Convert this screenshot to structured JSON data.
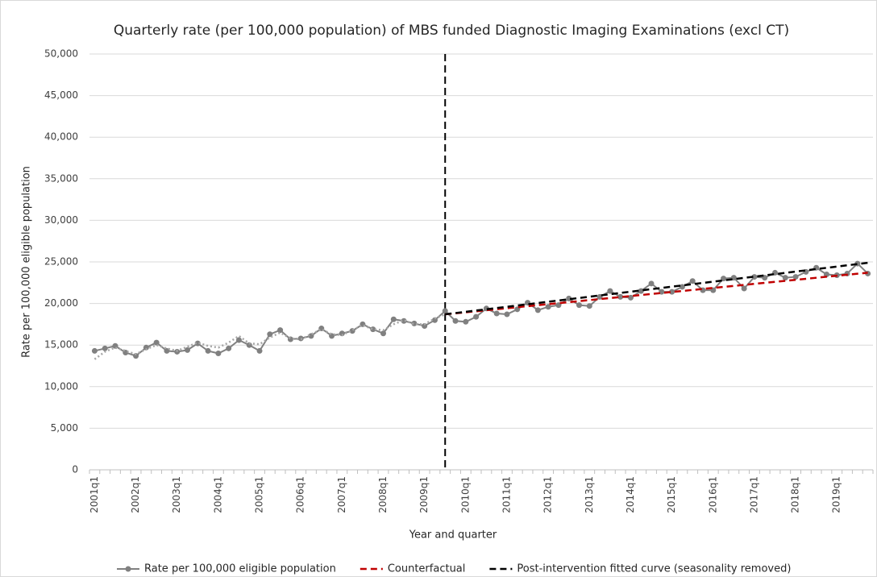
{
  "chart_data": {
    "type": "line",
    "title": "Quarterly rate (per 100,000 population) of MBS funded Diagnostic Imaging Examinations (excl CT)",
    "x_label": "Year and quarter",
    "y_label": "Rate per 100,000 eligible population",
    "categories": [
      "2001q1",
      null,
      null,
      null,
      "2002q1",
      null,
      null,
      null,
      "2003q1",
      null,
      null,
      null,
      "2004q1",
      null,
      null,
      null,
      "2005q1",
      null,
      null,
      null,
      "2006q1",
      null,
      null,
      null,
      "2007q1",
      null,
      null,
      null,
      "2008q1",
      null,
      null,
      null,
      "2009q1",
      null,
      null,
      null,
      "2010q1",
      null,
      null,
      null,
      "2011q1",
      null,
      null,
      null,
      "2012q1",
      null,
      null,
      null,
      "2013q1",
      null,
      null,
      null,
      "2014q1",
      null,
      null,
      null,
      "2015q1",
      null,
      null,
      null,
      "2016q1",
      null,
      null,
      null,
      "2017q1",
      null,
      null,
      null,
      "2018q1",
      null,
      null,
      null,
      "2019q1",
      null,
      null,
      null
    ],
    "ylim": [
      0,
      50000
    ],
    "yticks": [
      0,
      {
        "value": 5000,
        "label": "5,000"
      },
      {
        "value": 10000,
        "label": "10,000"
      },
      {
        "value": 15000,
        "label": "15,000"
      },
      {
        "value": 20000,
        "label": "20,000"
      },
      {
        "value": 25000,
        "label": "25,000"
      },
      {
        "value": 30000,
        "label": "30,000"
      },
      {
        "value": 35000,
        "label": "35,000"
      },
      {
        "value": 40000,
        "label": "40,000"
      },
      {
        "value": 45000,
        "label": "45,000"
      },
      {
        "value": 50000,
        "label": "50,000"
      }
    ],
    "grid": true,
    "legend": "bottom",
    "series": [
      {
        "name": "Rate per 100,000 eligible population",
        "color": "#808080",
        "style": "solid",
        "markers": true,
        "values": [
          14300,
          14600,
          14900,
          14100,
          13700,
          14700,
          15300,
          14300,
          14200,
          14400,
          15200,
          14300,
          14000,
          14600,
          15600,
          15000,
          14300,
          16300,
          16800,
          15700,
          15800,
          16100,
          17000,
          16100,
          16400,
          16700,
          17500,
          16900,
          16400,
          18100,
          17900,
          17600,
          17300,
          18000,
          19100,
          17900,
          17800,
          18400,
          19400,
          18800,
          18700,
          19300,
          20100,
          19200,
          19600,
          19800,
          20600,
          19800,
          19700,
          20800,
          21500,
          20800,
          20700,
          21500,
          22400,
          21400,
          21400,
          22000,
          22700,
          21600,
          21600,
          23000,
          23100,
          21800,
          23200,
          23100,
          23700,
          23100,
          23200,
          23800,
          24300,
          23500,
          23400,
          23600,
          24800,
          23600
        ]
      },
      {
        "color": "#a6a6a6",
        "style": "dotted",
        "markers": false,
        "values": [
          13300,
          14200,
          14700,
          14300,
          13900,
          14500,
          15000,
          14600,
          14300,
          14800,
          15300,
          14900,
          14700,
          15300,
          16100,
          15200,
          15100,
          15900,
          16500,
          15800,
          15700,
          16300,
          16900,
          16300,
          16200,
          16800,
          17400,
          16900,
          16800,
          17500,
          18000,
          17500,
          17500,
          18200,
          18700,
          null,
          null,
          null,
          null,
          null,
          null,
          null,
          null,
          null,
          null,
          null,
          null,
          null,
          null,
          null,
          null,
          null,
          null,
          null,
          null,
          null,
          null,
          null,
          null,
          null,
          null,
          null,
          null,
          null,
          null,
          null,
          null,
          null,
          null,
          null,
          null,
          null,
          null,
          null,
          null,
          null
        ]
      },
      {
        "name": "Counterfactual",
        "color": "#c00000",
        "style": "dashed",
        "markers": false,
        "values": [
          null,
          null,
          null,
          null,
          null,
          null,
          null,
          null,
          null,
          null,
          null,
          null,
          null,
          null,
          null,
          null,
          null,
          null,
          null,
          null,
          null,
          null,
          null,
          null,
          null,
          null,
          null,
          null,
          null,
          null,
          null,
          null,
          null,
          null,
          18700,
          18822,
          18944,
          19066,
          19188,
          19310,
          19432,
          19554,
          19676,
          19798,
          19920,
          20042,
          20164,
          20286,
          20408,
          20530,
          20652,
          20774,
          20896,
          21018,
          21140,
          21262,
          21384,
          21506,
          21628,
          21750,
          21872,
          21994,
          22116,
          22238,
          22360,
          22482,
          22604,
          22726,
          22848,
          22970,
          23092,
          23214,
          23336,
          23458,
          23580,
          23702
        ]
      },
      {
        "name": "Post-intervention fitted curve (seasonality removed)",
        "color": "#000000",
        "style": "dashed",
        "markers": false,
        "values": [
          null,
          null,
          null,
          null,
          null,
          null,
          null,
          null,
          null,
          null,
          null,
          null,
          null,
          null,
          null,
          null,
          null,
          null,
          null,
          null,
          null,
          null,
          null,
          null,
          null,
          null,
          null,
          null,
          null,
          null,
          null,
          null,
          null,
          null,
          18700,
          18851,
          19002,
          19153,
          19304,
          19455,
          19606,
          19757,
          19908,
          20059,
          20210,
          20361,
          20512,
          20663,
          20814,
          20965,
          21116,
          21267,
          21418,
          21569,
          21720,
          21871,
          22022,
          22173,
          22324,
          22475,
          22626,
          22777,
          22928,
          23079,
          23230,
          23381,
          23532,
          23683,
          23834,
          23985,
          24136,
          24287,
          24438,
          24589,
          24740,
          24891
        ]
      }
    ]
  }
}
